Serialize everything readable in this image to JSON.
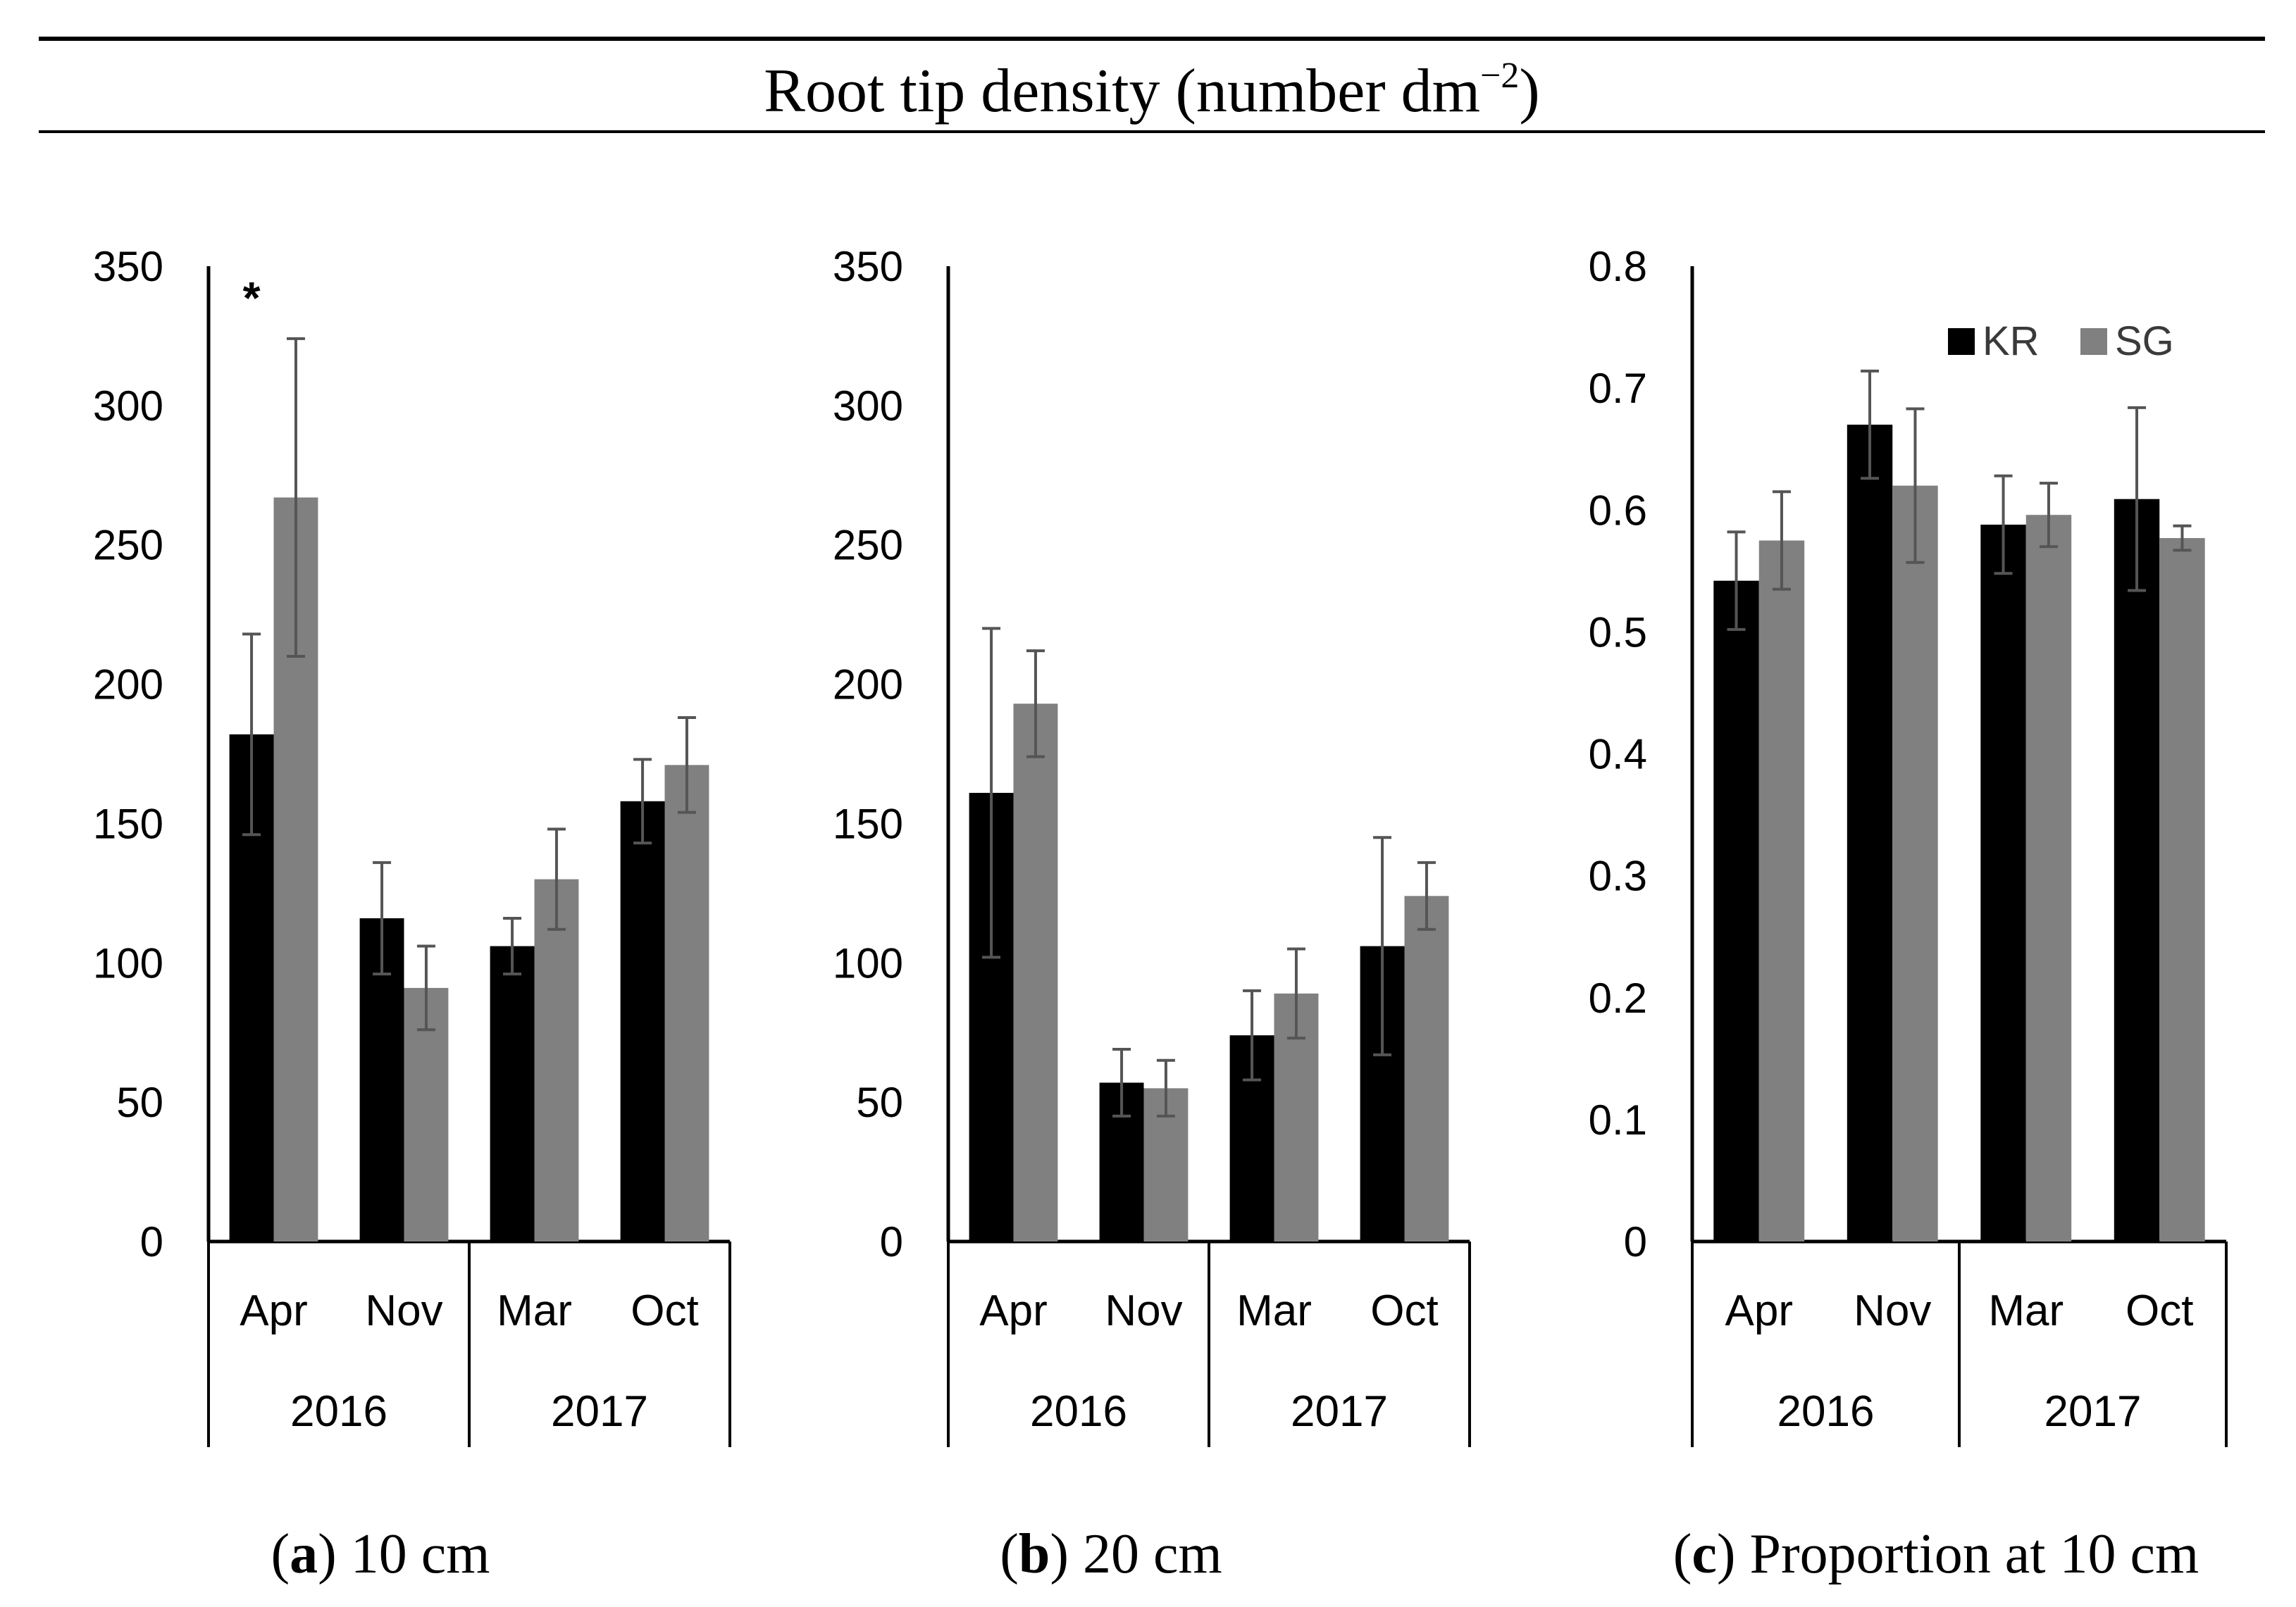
{
  "figure": {
    "header": "Root tip density (number dm",
    "header_sup": "−2",
    "header_close": ")"
  },
  "legend": [
    {
      "name": "KR",
      "color": "#000000"
    },
    {
      "name": "SG",
      "color": "#808080"
    }
  ],
  "chart_data": [
    {
      "type": "bar",
      "caption_letter": "a",
      "caption_text": "10 cm",
      "categories": [
        "Apr",
        "Nov",
        "Mar",
        "Oct"
      ],
      "groups": [
        "2016",
        "2017"
      ],
      "ylim": [
        0,
        350
      ],
      "yticks": [
        "0",
        "50",
        "100",
        "150",
        "200",
        "250",
        "300",
        "350"
      ],
      "series": [
        {
          "name": "KR",
          "values": [
            182,
            116,
            106,
            158
          ],
          "errors": [
            36,
            20,
            10,
            15
          ]
        },
        {
          "name": "SG",
          "values": [
            267,
            91,
            130,
            171
          ],
          "errors": [
            57,
            15,
            18,
            17
          ]
        }
      ],
      "annotations": [
        {
          "text": "*"
        }
      ]
    },
    {
      "type": "bar",
      "caption_letter": "b",
      "caption_text": "20 cm",
      "categories": [
        "Apr",
        "Nov",
        "Mar",
        "Oct"
      ],
      "groups": [
        "2016",
        "2017"
      ],
      "ylim": [
        0,
        350
      ],
      "yticks": [
        "0",
        "50",
        "100",
        "150",
        "200",
        "250",
        "300",
        "350"
      ],
      "series": [
        {
          "name": "KR",
          "values": [
            161,
            57,
            74,
            106
          ],
          "errors": [
            59,
            12,
            16,
            39
          ]
        },
        {
          "name": "SG",
          "values": [
            193,
            55,
            89,
            124
          ],
          "errors": [
            19,
            10,
            16,
            12
          ]
        }
      ]
    },
    {
      "type": "bar",
      "caption_letter": "c",
      "caption_text": "Proportion at 10 cm",
      "categories": [
        "Apr",
        "Nov",
        "Mar",
        "Oct"
      ],
      "groups": [
        "2016",
        "2017"
      ],
      "ylim": [
        0,
        0.8
      ],
      "yticks": [
        "0",
        "0.1",
        "0.2",
        "0.3",
        "0.4",
        "0.5",
        "0.6",
        "0.7",
        "0.8"
      ],
      "series": [
        {
          "name": "KR",
          "values": [
            0.542,
            0.67,
            0.588,
            0.609
          ],
          "errors": [
            0.04,
            0.044,
            0.04,
            0.075
          ]
        },
        {
          "name": "SG",
          "values": [
            0.575,
            0.62,
            0.596,
            0.577
          ],
          "errors": [
            0.04,
            0.063,
            0.026,
            0.01
          ]
        }
      ]
    }
  ]
}
